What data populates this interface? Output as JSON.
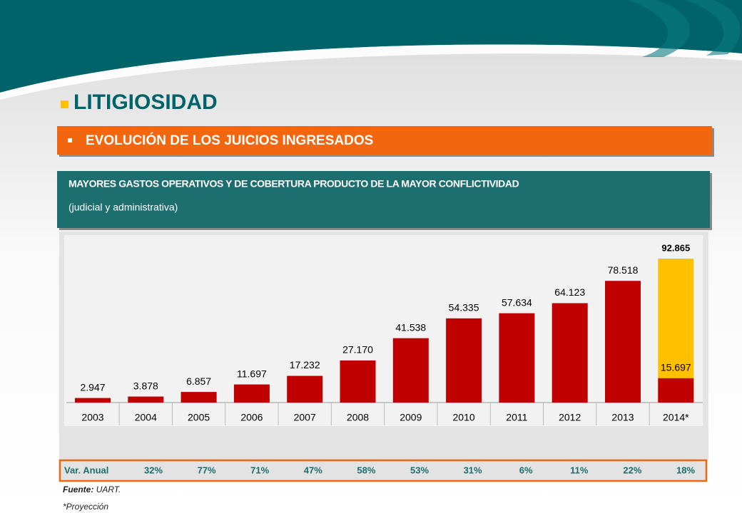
{
  "title": "LITIGIOSIDAD",
  "banner": "EVOLUCIÓN DE LOS JUICIOS INGRESADOS",
  "note": {
    "line1": "MAYORES GASTOS OPERATIVOS Y DE COBERTURA PRODUCTO DE LA MAYOR CONFLICTIVIDAD",
    "line2": "(judicial y administrativa)"
  },
  "chart_data": {
    "type": "bar",
    "categories": [
      "2003",
      "2004",
      "2005",
      "2006",
      "2007",
      "2008",
      "2009",
      "2010",
      "2011",
      "2012",
      "2013",
      "2014*"
    ],
    "values": [
      2947,
      3878,
      6857,
      11697,
      17232,
      27170,
      41538,
      54335,
      57634,
      64123,
      78518,
      15697
    ],
    "value_labels": [
      "2.947",
      "3.878",
      "6.857",
      "11.697",
      "17.232",
      "27.170",
      "41.538",
      "54.335",
      "57.634",
      "64.123",
      "78.518",
      "15.697"
    ],
    "color": "#c00000",
    "projection": {
      "values": [
        null,
        null,
        null,
        null,
        null,
        null,
        null,
        null,
        null,
        null,
        null,
        92865
      ],
      "value_labels": [
        null,
        null,
        null,
        null,
        null,
        null,
        null,
        null,
        null,
        null,
        null,
        "92.865"
      ],
      "color": "#ffc000"
    }
  },
  "variation_row": {
    "label": "Var. Anual",
    "cells": [
      "32%",
      "77%",
      "71%",
      "47%",
      "58%",
      "53%",
      "31%",
      "6%",
      "11%",
      "22%",
      "18%"
    ]
  },
  "source": {
    "label": "Fuente:",
    "text": "UART."
  },
  "footnote": "*Proyección"
}
